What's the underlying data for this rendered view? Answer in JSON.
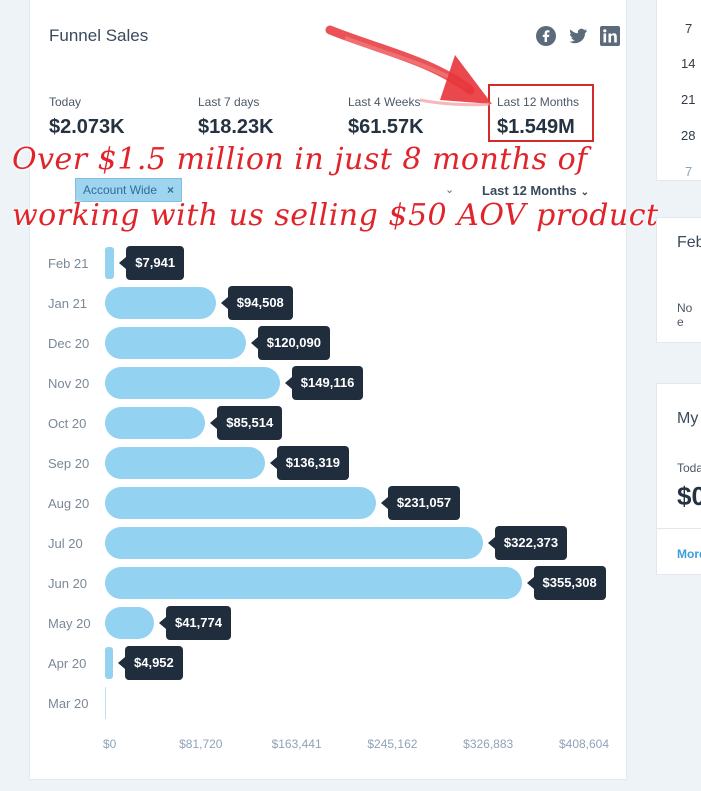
{
  "header": {
    "title": "Funnel Sales"
  },
  "social": [
    "facebook-icon",
    "twitter-icon",
    "linkedin-icon"
  ],
  "stats": [
    {
      "label": "Today",
      "value": "$2.073K"
    },
    {
      "label": "Last 7 days",
      "value": "$18.23K"
    },
    {
      "label": "Last 4 Weeks",
      "value": "$61.57K"
    },
    {
      "label": "Last 12 Months",
      "value": "$1.549M"
    }
  ],
  "filter": {
    "chip": "Account Wide",
    "chip_close": "×",
    "period": "Last 12 Months"
  },
  "annotation": {
    "line1": "Over $1.5 million  in just 8 months of",
    "line2": "working with us selling $50 AOV product."
  },
  "chart_data": {
    "type": "bar",
    "orientation": "horizontal",
    "categories": [
      "Feb 21",
      "Jan 21",
      "Dec 20",
      "Nov 20",
      "Oct 20",
      "Sep 20",
      "Aug 20",
      "Jul 20",
      "Jun 20",
      "May 20",
      "Apr 20",
      "Mar 20"
    ],
    "values": [
      7941,
      94508,
      120090,
      149116,
      85514,
      136319,
      231057,
      322373,
      355308,
      41774,
      4952,
      0
    ],
    "value_labels": [
      "$7,941",
      "$94,508",
      "$120,090",
      "$149,116",
      "$85,514",
      "$136,319",
      "$231,057",
      "$322,373",
      "$355,308",
      "$41,774",
      "$4,952",
      ""
    ],
    "xlim": [
      0,
      408604
    ],
    "x_ticks": [
      "$0",
      "$81,720",
      "$163,441",
      "$245,162",
      "$326,883",
      "$408,604"
    ],
    "grid": false,
    "colors": {
      "bar": "#93d2f1",
      "tooltip": "#1f2d3d"
    }
  },
  "sidebar": {
    "calendar_numbers": [
      "7",
      "14",
      "21",
      "28",
      "7"
    ],
    "feb_title": "Feb",
    "feb_text": "No e",
    "my_title": "My",
    "my_label": "Toda",
    "my_value": "$0",
    "my_link": "More"
  },
  "colors": {
    "accent": "#3a9fd8",
    "highlight": "#d42a2a",
    "annotation": "#e0242b"
  }
}
